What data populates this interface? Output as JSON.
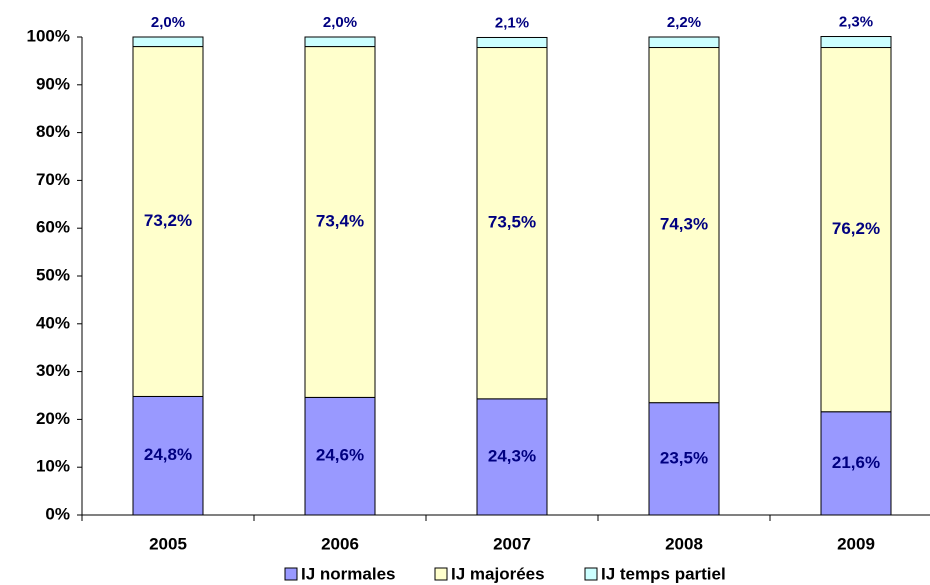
{
  "chart_data": {
    "type": "stacked_bar",
    "categories": [
      "2005",
      "2006",
      "2007",
      "2008",
      "2009"
    ],
    "series": [
      {
        "name": "IJ normales",
        "color": "#9999ff",
        "values": [
          24.8,
          24.6,
          24.3,
          23.5,
          21.6
        ],
        "value_labels": [
          "24,8%",
          "24,6%",
          "24,3%",
          "23,5%",
          "21,6%"
        ]
      },
      {
        "name": "IJ majorées",
        "color": "#ffffcc",
        "values": [
          73.2,
          73.4,
          73.5,
          74.3,
          76.2
        ],
        "value_labels": [
          "73,2%",
          "73,4%",
          "73,5%",
          "74,3%",
          "76,2%"
        ]
      },
      {
        "name": "IJ temps partiel",
        "color": "#ccffff",
        "values": [
          2.0,
          2.0,
          2.1,
          2.2,
          2.3
        ],
        "value_labels": [
          "2,0%",
          "2,0%",
          "2,1%",
          "2,2%",
          "2,3%"
        ]
      }
    ],
    "ylim": [
      0,
      100
    ],
    "yticks": [
      {
        "value": 0,
        "label": "0%"
      },
      {
        "value": 10,
        "label": "10%"
      },
      {
        "value": 20,
        "label": "20%"
      },
      {
        "value": 30,
        "label": "30%"
      },
      {
        "value": 40,
        "label": "40%"
      },
      {
        "value": 50,
        "label": "50%"
      },
      {
        "value": 60,
        "label": "60%"
      },
      {
        "value": 70,
        "label": "70%"
      },
      {
        "value": 80,
        "label": "80%"
      },
      {
        "value": 90,
        "label": "90%"
      },
      {
        "value": 100,
        "label": "100%"
      }
    ],
    "legend": "bottom"
  }
}
